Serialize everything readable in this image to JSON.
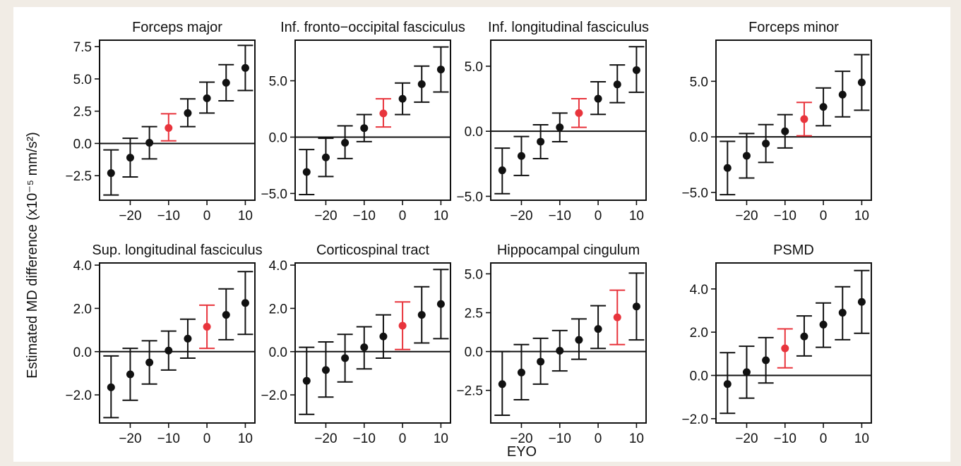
{
  "figure": {
    "ylabel": "Estimated MD difference (x10⁻⁵ mm/s²)",
    "xlabel": "EYO"
  },
  "colors": {
    "highlight": "#e8343c",
    "default": "#111111"
  },
  "chart_data": [
    {
      "type": "scatter",
      "title": "Forceps major",
      "x": [
        -25,
        -20,
        -15,
        -10,
        -5,
        0,
        5,
        10
      ],
      "y": [
        -2.3,
        -1.1,
        0.05,
        1.2,
        2.35,
        3.5,
        4.7,
        5.85
      ],
      "lower": [
        -4.0,
        -2.6,
        -1.2,
        0.2,
        1.3,
        2.35,
        3.3,
        4.1
      ],
      "upper": [
        -0.5,
        0.4,
        1.3,
        2.3,
        3.45,
        4.75,
        6.1,
        7.6
      ],
      "highlight_index": 3,
      "xlim": [
        -28,
        12.5
      ],
      "ylim": [
        -4.4,
        8.0
      ],
      "xticks": [
        -20,
        -10,
        0,
        10
      ],
      "xtick_labels": [
        "−20",
        "−10",
        "0",
        "10"
      ],
      "yticks": [
        -2.5,
        0.0,
        2.5,
        5.0,
        7.5
      ],
      "ytick_labels": [
        "−2.5",
        "0.0",
        "2.5",
        "5.0",
        "7.5"
      ],
      "hline": 0
    },
    {
      "type": "scatter",
      "title": "Inf. fronto−occipital fasciculus",
      "x": [
        -25,
        -20,
        -15,
        -10,
        -5,
        0,
        5,
        10
      ],
      "y": [
        -3.1,
        -1.8,
        -0.5,
        0.8,
        2.1,
        3.4,
        4.7,
        6.0
      ],
      "lower": [
        -5.1,
        -3.5,
        -1.9,
        -0.4,
        0.9,
        2.0,
        3.1,
        4.0
      ],
      "upper": [
        -1.1,
        -0.1,
        1.0,
        2.0,
        3.4,
        4.8,
        6.3,
        8.0
      ],
      "highlight_index": 4,
      "xlim": [
        -28,
        12.5
      ],
      "ylim": [
        -5.6,
        8.6
      ],
      "xticks": [
        -20,
        -10,
        0,
        10
      ],
      "xtick_labels": [
        "−20",
        "−10",
        "0",
        "10"
      ],
      "yticks": [
        -5.0,
        0.0,
        5.0
      ],
      "ytick_labels": [
        "−5.0",
        "0.0",
        "5.0"
      ],
      "hline": 0
    },
    {
      "type": "scatter",
      "title": "Inf. longitudinal fasciculus",
      "x": [
        -25,
        -20,
        -15,
        -10,
        -5,
        0,
        5,
        10
      ],
      "y": [
        -3.0,
        -1.9,
        -0.8,
        0.3,
        1.4,
        2.5,
        3.6,
        4.7
      ],
      "lower": [
        -4.8,
        -3.4,
        -2.1,
        -0.8,
        0.3,
        1.3,
        2.2,
        3.0
      ],
      "upper": [
        -1.3,
        -0.4,
        0.5,
        1.4,
        2.5,
        3.8,
        5.1,
        6.5
      ],
      "highlight_index": 4,
      "xlim": [
        -28,
        12.5
      ],
      "ylim": [
        -5.3,
        7.0
      ],
      "xticks": [
        -20,
        -10,
        0,
        10
      ],
      "xtick_labels": [
        "−20",
        "−10",
        "0",
        "10"
      ],
      "yticks": [
        -5.0,
        0.0,
        5.0
      ],
      "ytick_labels": [
        "−5.0",
        "0.0",
        "5.0"
      ],
      "hline": 0
    },
    {
      "type": "scatter",
      "title": "Forceps minor",
      "x": [
        -25,
        -20,
        -15,
        -10,
        -5,
        0,
        5,
        10
      ],
      "y": [
        -2.8,
        -1.7,
        -0.6,
        0.5,
        1.6,
        2.7,
        3.8,
        4.9
      ],
      "lower": [
        -5.2,
        -3.7,
        -2.3,
        -1.0,
        0.1,
        1.0,
        1.8,
        2.4
      ],
      "upper": [
        -0.4,
        0.3,
        1.1,
        2.0,
        3.1,
        4.4,
        5.9,
        7.4
      ],
      "highlight_index": 4,
      "xlim": [
        -28,
        12.5
      ],
      "ylim": [
        -5.7,
        8.7
      ],
      "xticks": [
        -20,
        -10,
        0,
        10
      ],
      "xtick_labels": [
        "−20",
        "−10",
        "0",
        "10"
      ],
      "yticks": [
        -5.0,
        0.0,
        5.0
      ],
      "ytick_labels": [
        "−5.0",
        "0.0",
        "5.0"
      ],
      "hline": 0
    },
    {
      "type": "scatter",
      "title": "Sup. longitudinal fasciculus",
      "x": [
        -25,
        -20,
        -15,
        -10,
        -5,
        0,
        5,
        10
      ],
      "y": [
        -1.65,
        -1.05,
        -0.5,
        0.05,
        0.6,
        1.15,
        1.7,
        2.25
      ],
      "lower": [
        -3.05,
        -2.25,
        -1.5,
        -0.85,
        -0.3,
        0.15,
        0.55,
        0.8
      ],
      "upper": [
        -0.2,
        0.15,
        0.5,
        0.95,
        1.5,
        2.15,
        2.9,
        3.7
      ],
      "highlight_index": 5,
      "xlim": [
        -28,
        12.5
      ],
      "ylim": [
        -3.3,
        4.1
      ],
      "xticks": [
        -20,
        -10,
        0,
        10
      ],
      "xtick_labels": [
        "−20",
        "−10",
        "0",
        "10"
      ],
      "yticks": [
        -2.0,
        0.0,
        2.0,
        4.0
      ],
      "ytick_labels": [
        "−2.0",
        "0.0",
        "2.0",
        "4.0"
      ],
      "hline": 0
    },
    {
      "type": "scatter",
      "title": "Corticospinal tract",
      "x": [
        -25,
        -20,
        -15,
        -10,
        -5,
        0,
        5,
        10
      ],
      "y": [
        -1.35,
        -0.85,
        -0.3,
        0.2,
        0.7,
        1.2,
        1.7,
        2.2
      ],
      "lower": [
        -2.9,
        -2.1,
        -1.4,
        -0.8,
        -0.3,
        0.1,
        0.4,
        0.6
      ],
      "upper": [
        0.2,
        0.45,
        0.8,
        1.15,
        1.7,
        2.3,
        3.0,
        3.8
      ],
      "highlight_index": 5,
      "xlim": [
        -28,
        12.5
      ],
      "ylim": [
        -3.3,
        4.1
      ],
      "xticks": [
        -20,
        -10,
        0,
        10
      ],
      "xtick_labels": [
        "−20",
        "−10",
        "0",
        "10"
      ],
      "yticks": [
        -2.0,
        0.0,
        2.0,
        4.0
      ],
      "ytick_labels": [
        "−2.0",
        "0.0",
        "2.0",
        "4.0"
      ],
      "hline": 0
    },
    {
      "type": "scatter",
      "title": "Hippocampal cingulum",
      "x": [
        -25,
        -20,
        -15,
        -10,
        -5,
        0,
        5,
        10
      ],
      "y": [
        -2.1,
        -1.35,
        -0.65,
        0.05,
        0.75,
        1.45,
        2.2,
        2.9
      ],
      "lower": [
        -4.1,
        -3.1,
        -2.1,
        -1.25,
        -0.5,
        0.2,
        0.45,
        0.75
      ],
      "upper": [
        0.0,
        0.45,
        0.85,
        1.35,
        2.1,
        2.95,
        3.95,
        5.05
      ],
      "highlight_index": 6,
      "xlim": [
        -28,
        12.5
      ],
      "ylim": [
        -4.6,
        5.7
      ],
      "xticks": [
        -20,
        -10,
        0,
        10
      ],
      "xtick_labels": [
        "−20",
        "−10",
        "0",
        "10"
      ],
      "yticks": [
        -2.5,
        0.0,
        2.5,
        5.0
      ],
      "ytick_labels": [
        "−2.5",
        "0.0",
        "2.5",
        "5.0"
      ],
      "hline": 0
    },
    {
      "type": "scatter",
      "title": "PSMD",
      "x": [
        -25,
        -20,
        -15,
        -10,
        -5,
        0,
        5,
        10
      ],
      "y": [
        -0.4,
        0.15,
        0.7,
        1.25,
        1.8,
        2.35,
        2.9,
        3.4
      ],
      "lower": [
        -1.75,
        -1.05,
        -0.35,
        0.35,
        0.9,
        1.3,
        1.65,
        1.95
      ],
      "upper": [
        1.05,
        1.35,
        1.75,
        2.15,
        2.75,
        3.35,
        4.1,
        4.85
      ],
      "highlight_index": 3,
      "xlim": [
        -28,
        12.5
      ],
      "ylim": [
        -2.2,
        5.2
      ],
      "xticks": [
        -20,
        -10,
        0,
        10
      ],
      "xtick_labels": [
        "−20",
        "−10",
        "0",
        "10"
      ],
      "yticks": [
        -2.0,
        0.0,
        2.0,
        4.0
      ],
      "ytick_labels": [
        "−2.0",
        "0.0",
        "2.0",
        "4.0"
      ],
      "hline": 0
    }
  ]
}
